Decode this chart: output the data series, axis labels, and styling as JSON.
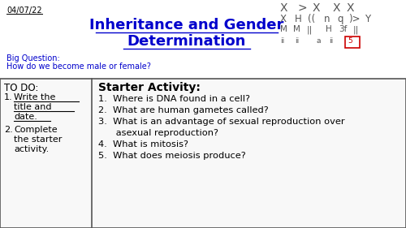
{
  "date": "04/07/22",
  "title_line1": "Inheritance and Gender",
  "title_line2": "Determination",
  "big_question_label": "Big Question:",
  "big_question_text": "How do we become male or female?",
  "todo_header": "TO DO:",
  "starter_title": "Starter Activity:",
  "starter_questions": [
    "1.  Where is DNA found in a cell?",
    "2.  What are human gametes called?",
    "3.  What is an advantage of sexual reproduction over",
    "      asexual reproduction?",
    "4.  What is mitosis?",
    "5.  What does meiosis produce?"
  ],
  "bg_color": "#ffffff",
  "title_color": "#0000cc",
  "date_color": "#000000",
  "big_q_color": "#0000cc",
  "box_border_color": "#555555",
  "todo_color": "#000000",
  "starter_title_color": "#000000",
  "starter_q_color": "#000000",
  "chromosome_color": "#555555",
  "red_box_color": "#cc0000"
}
